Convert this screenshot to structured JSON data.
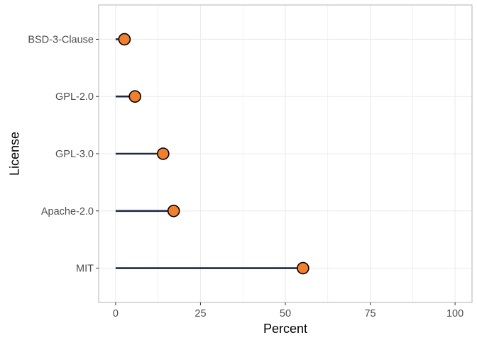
{
  "chart_data": {
    "type": "lollipop",
    "xlabel": "Percent",
    "ylabel": "License",
    "xlim": [
      -5,
      105
    ],
    "x_ticks": [
      0,
      25,
      50,
      75,
      100
    ],
    "categories": [
      "MIT",
      "Apache-2.0",
      "GPL-3.0",
      "GPL-2.0",
      "BSD-3-Clause"
    ],
    "values": [
      55.2,
      17.1,
      14.0,
      5.7,
      2.6
    ],
    "grid": true,
    "colors": {
      "point_fill": "#F47F2A",
      "point_stroke": "#000000",
      "stem": "#1E2A44",
      "grid": "#EBEBEB",
      "panel_border": "#B3B3B3"
    }
  }
}
